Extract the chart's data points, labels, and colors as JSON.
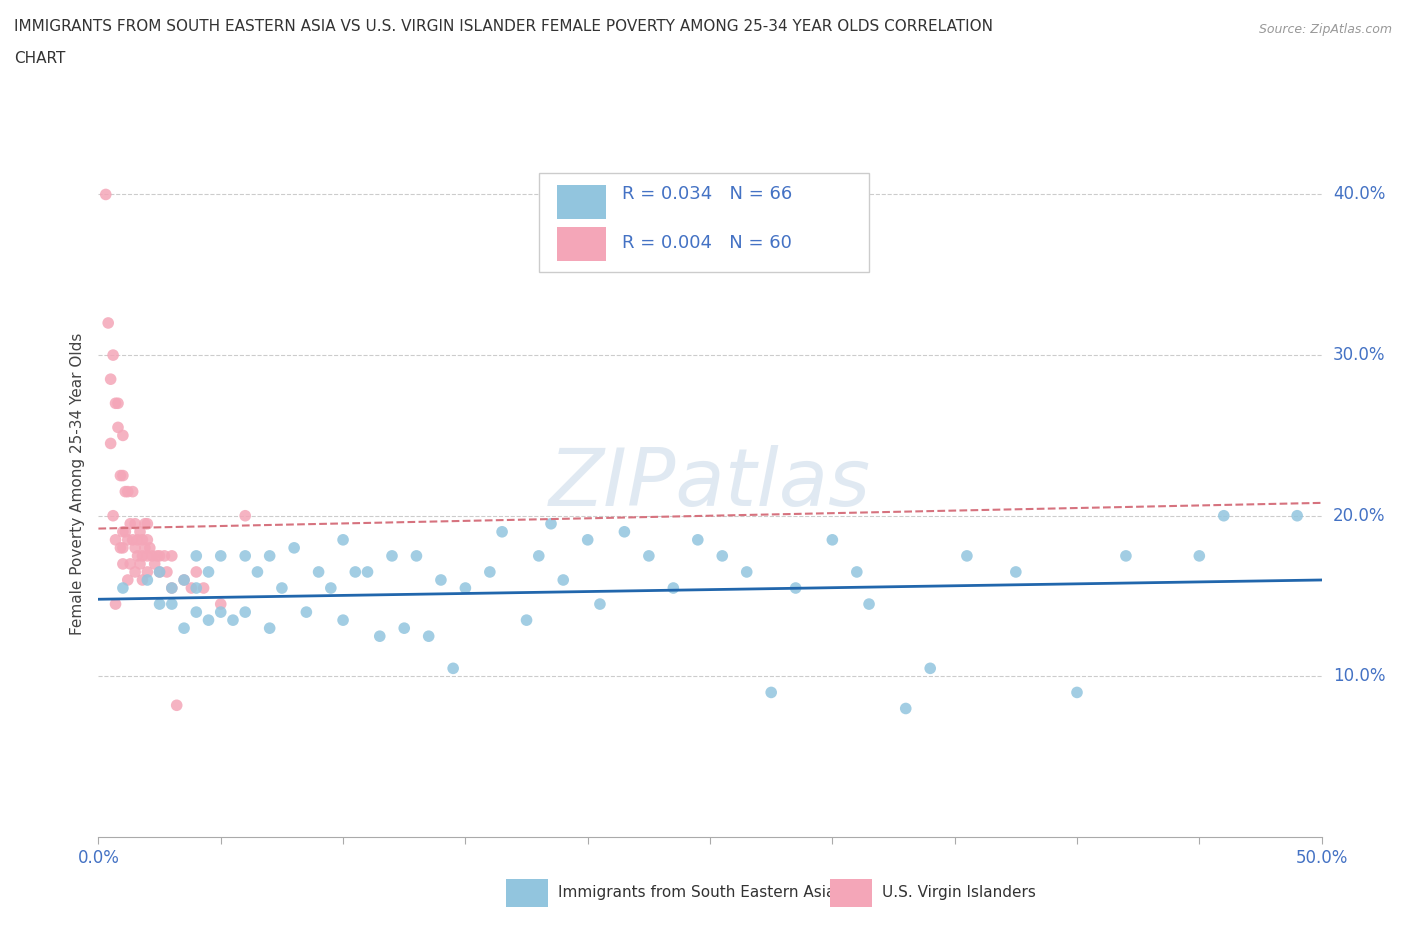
{
  "title_line1": "IMMIGRANTS FROM SOUTH EASTERN ASIA VS U.S. VIRGIN ISLANDER FEMALE POVERTY AMONG 25-34 YEAR OLDS CORRELATION",
  "title_line2": "CHART",
  "source": "Source: ZipAtlas.com",
  "ylabel": "Female Poverty Among 25-34 Year Olds",
  "xlim": [
    0.0,
    0.5
  ],
  "ylim": [
    0.0,
    0.44
  ],
  "ytick_positions": [
    0.0,
    0.1,
    0.2,
    0.3,
    0.4
  ],
  "xtick_positions": [
    0.0,
    0.05,
    0.1,
    0.15,
    0.2,
    0.25,
    0.3,
    0.35,
    0.4,
    0.45,
    0.5
  ],
  "watermark": "ZIPatlas",
  "legend_R1": "R = 0.034",
  "legend_N1": "N = 66",
  "legend_R2": "R = 0.004",
  "legend_N2": "N = 60",
  "color_blue": "#92c5de",
  "color_pink": "#f4a6b8",
  "trendline_blue": "#2166ac",
  "trendline_pink": "#d6727e",
  "legend_label_blue": "Immigrants from South Eastern Asia",
  "legend_label_pink": "U.S. Virgin Islanders",
  "blue_scatter_x": [
    0.01,
    0.02,
    0.025,
    0.025,
    0.03,
    0.03,
    0.035,
    0.035,
    0.04,
    0.04,
    0.04,
    0.045,
    0.045,
    0.05,
    0.05,
    0.055,
    0.06,
    0.06,
    0.065,
    0.07,
    0.07,
    0.075,
    0.08,
    0.085,
    0.09,
    0.095,
    0.1,
    0.1,
    0.105,
    0.11,
    0.115,
    0.12,
    0.125,
    0.13,
    0.135,
    0.14,
    0.145,
    0.15,
    0.16,
    0.165,
    0.175,
    0.18,
    0.185,
    0.19,
    0.2,
    0.205,
    0.215,
    0.225,
    0.235,
    0.245,
    0.255,
    0.265,
    0.275,
    0.285,
    0.3,
    0.31,
    0.315,
    0.33,
    0.34,
    0.355,
    0.375,
    0.4,
    0.42,
    0.45,
    0.46,
    0.49
  ],
  "blue_scatter_y": [
    0.155,
    0.16,
    0.145,
    0.165,
    0.155,
    0.145,
    0.16,
    0.13,
    0.175,
    0.155,
    0.14,
    0.165,
    0.135,
    0.175,
    0.14,
    0.135,
    0.175,
    0.14,
    0.165,
    0.175,
    0.13,
    0.155,
    0.18,
    0.14,
    0.165,
    0.155,
    0.185,
    0.135,
    0.165,
    0.165,
    0.125,
    0.175,
    0.13,
    0.175,
    0.125,
    0.16,
    0.105,
    0.155,
    0.165,
    0.19,
    0.135,
    0.175,
    0.195,
    0.16,
    0.185,
    0.145,
    0.19,
    0.175,
    0.155,
    0.185,
    0.175,
    0.165,
    0.09,
    0.155,
    0.185,
    0.165,
    0.145,
    0.08,
    0.105,
    0.175,
    0.165,
    0.09,
    0.175,
    0.175,
    0.2,
    0.2
  ],
  "pink_scatter_x": [
    0.003,
    0.004,
    0.005,
    0.005,
    0.006,
    0.006,
    0.007,
    0.007,
    0.007,
    0.008,
    0.008,
    0.009,
    0.009,
    0.01,
    0.01,
    0.01,
    0.01,
    0.01,
    0.011,
    0.011,
    0.012,
    0.012,
    0.012,
    0.013,
    0.013,
    0.014,
    0.014,
    0.015,
    0.015,
    0.015,
    0.016,
    0.016,
    0.017,
    0.017,
    0.018,
    0.018,
    0.018,
    0.019,
    0.019,
    0.02,
    0.02,
    0.02,
    0.02,
    0.021,
    0.022,
    0.023,
    0.024,
    0.025,
    0.025,
    0.027,
    0.028,
    0.03,
    0.03,
    0.032,
    0.035,
    0.038,
    0.04,
    0.043,
    0.05,
    0.06
  ],
  "pink_scatter_y": [
    0.4,
    0.32,
    0.285,
    0.245,
    0.3,
    0.2,
    0.27,
    0.185,
    0.145,
    0.27,
    0.255,
    0.225,
    0.18,
    0.25,
    0.225,
    0.19,
    0.18,
    0.17,
    0.215,
    0.19,
    0.215,
    0.185,
    0.16,
    0.195,
    0.17,
    0.215,
    0.185,
    0.195,
    0.18,
    0.165,
    0.185,
    0.175,
    0.19,
    0.17,
    0.185,
    0.175,
    0.16,
    0.195,
    0.18,
    0.195,
    0.185,
    0.175,
    0.165,
    0.18,
    0.175,
    0.17,
    0.175,
    0.175,
    0.165,
    0.175,
    0.165,
    0.175,
    0.155,
    0.082,
    0.16,
    0.155,
    0.165,
    0.155,
    0.145,
    0.2
  ],
  "blue_trend_x": [
    0.0,
    0.5
  ],
  "blue_trend_y": [
    0.148,
    0.16
  ],
  "pink_trend_x": [
    0.0,
    0.5
  ],
  "pink_trend_y": [
    0.192,
    0.208
  ]
}
